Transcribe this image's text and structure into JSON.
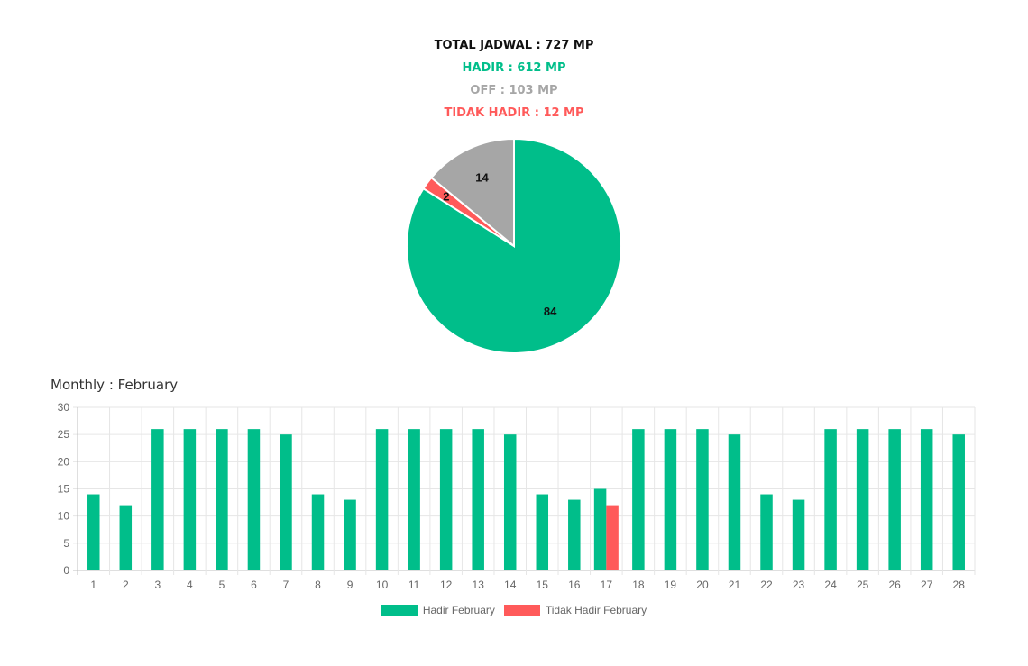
{
  "summary": {
    "total": "TOTAL JADWAL : 727 MP",
    "hadir": "HADIR : 612 MP",
    "off": "OFF : 103 MP",
    "tidak_hadir": "TIDAK HADIR : 12 MP"
  },
  "colors": {
    "hadir": "#00be8a",
    "tidak_hadir": "#ff5a5a",
    "off": "#a6a6a6",
    "total": "#111111"
  },
  "monthly_title": "Monthly : February",
  "chart_data": [
    {
      "type": "pie",
      "title": "",
      "slices": [
        {
          "label": "Hadir",
          "value": 84,
          "color": "#00be8a"
        },
        {
          "label": "Tidak Hadir",
          "value": 2,
          "color": "#ff5a5a"
        },
        {
          "label": "Off",
          "value": 14,
          "color": "#a6a6a6"
        }
      ]
    },
    {
      "type": "bar",
      "title": "",
      "categories": [
        "1",
        "2",
        "3",
        "4",
        "5",
        "6",
        "7",
        "8",
        "9",
        "10",
        "11",
        "12",
        "13",
        "14",
        "15",
        "16",
        "17",
        "18",
        "19",
        "20",
        "21",
        "22",
        "23",
        "24",
        "25",
        "26",
        "27",
        "28"
      ],
      "series": [
        {
          "name": "Hadir February",
          "color": "#00be8a",
          "values": [
            14,
            12,
            26,
            26,
            26,
            26,
            25,
            14,
            13,
            26,
            26,
            26,
            26,
            25,
            14,
            13,
            15,
            26,
            26,
            26,
            25,
            14,
            13,
            26,
            26,
            26,
            26,
            25
          ]
        },
        {
          "name": "Tidak Hadir February",
          "color": "#ff5a5a",
          "values": [
            0,
            0,
            0,
            0,
            0,
            0,
            0,
            0,
            0,
            0,
            0,
            0,
            0,
            0,
            0,
            0,
            12,
            0,
            0,
            0,
            0,
            0,
            0,
            0,
            0,
            0,
            0,
            0
          ]
        }
      ],
      "ylim": [
        0,
        30
      ],
      "yticks": [
        "0",
        "5",
        "10",
        "15",
        "20",
        "25",
        "30"
      ],
      "grid": true,
      "legend": "bottom"
    }
  ]
}
